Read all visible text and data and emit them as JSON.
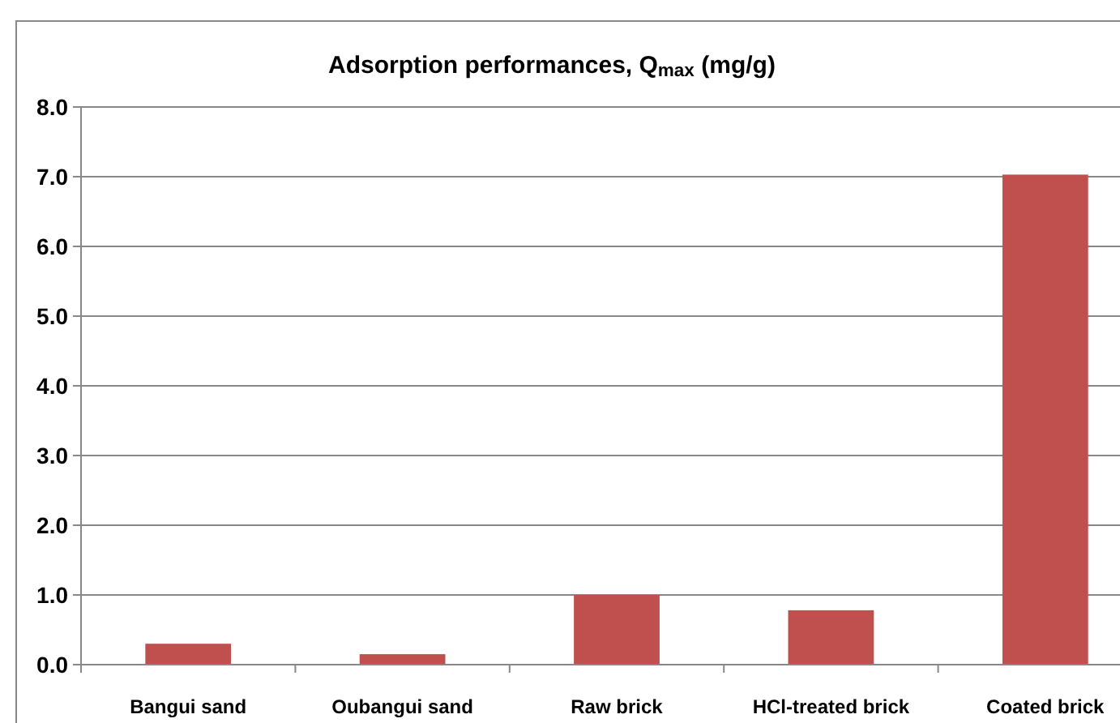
{
  "chart_data": {
    "type": "bar",
    "title": "Adsorption performances, Q$_{max}$ (mg/g)",
    "categories": [
      "Bangui sand",
      "Oubangui sand",
      "Raw brick",
      "HCl-treated brick",
      "Coated brick"
    ],
    "values": [
      0.3,
      0.15,
      1.0,
      0.78,
      7.03
    ],
    "color": "#c0504d",
    "ylim": [
      0,
      8
    ],
    "yticks": [
      {
        "value": 0,
        "label": "0.0"
      },
      {
        "value": 1,
        "label": "1.0"
      },
      {
        "value": 2,
        "label": "2.0"
      },
      {
        "value": 3,
        "label": "3.0"
      },
      {
        "value": 4,
        "label": "4.0"
      },
      {
        "value": 5,
        "label": "5.0"
      },
      {
        "value": 6,
        "label": "6.0"
      },
      {
        "value": 7,
        "label": "7.0"
      },
      {
        "value": 8,
        "label": "8.0"
      }
    ],
    "grid": "y"
  }
}
